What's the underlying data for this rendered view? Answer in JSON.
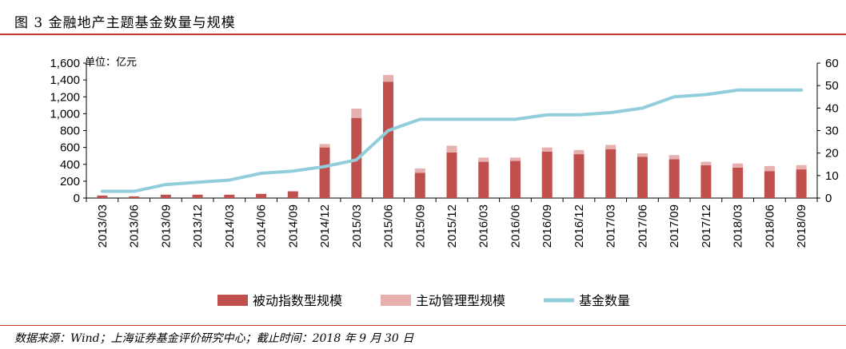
{
  "header": {
    "title": "图 3  金融地产主题基金数量与规模"
  },
  "footer": {
    "source": "数据来源：Wind；上海证券基金评价研究中心；截止时间：2018 年 9 月 30 日"
  },
  "colors": {
    "rule": "#c0392b",
    "passive": "#c0504d",
    "active": "#e6b0ae",
    "count": "#92cddc"
  },
  "chart_data": {
    "type": "bar",
    "unit_label": "单位：亿元",
    "categories": [
      "2013/03",
      "2013/06",
      "2013/09",
      "2013/12",
      "2014/03",
      "2014/06",
      "2014/09",
      "2014/12",
      "2015/03",
      "2015/06",
      "2015/09",
      "2015/12",
      "2016/03",
      "2016/06",
      "2016/09",
      "2016/12",
      "2017/03",
      "2017/06",
      "2017/09",
      "2017/12",
      "2018/03",
      "2018/06",
      "2018/09"
    ],
    "series": [
      {
        "name": "被动指数型规模",
        "kind": "bar-stacked",
        "axis": "left",
        "values": [
          30,
          20,
          40,
          40,
          40,
          50,
          80,
          600,
          950,
          1380,
          300,
          540,
          430,
          440,
          550,
          520,
          580,
          490,
          460,
          390,
          360,
          320,
          340
        ]
      },
      {
        "name": "主动管理型规模",
        "kind": "bar-stacked",
        "axis": "left",
        "values": [
          0,
          0,
          0,
          0,
          0,
          0,
          0,
          40,
          110,
          80,
          50,
          80,
          50,
          40,
          50,
          50,
          50,
          40,
          50,
          40,
          50,
          60,
          50
        ]
      },
      {
        "name": "基金数量",
        "kind": "line",
        "axis": "right",
        "values": [
          3,
          3,
          6,
          7,
          8,
          11,
          12,
          14,
          17,
          30,
          35,
          35,
          35,
          35,
          37,
          37,
          38,
          40,
          45,
          46,
          48,
          48,
          48
        ]
      }
    ],
    "ylim_left": [
      0,
      1600
    ],
    "yticks_left": [
      "0",
      "200",
      "400",
      "600",
      "800",
      "1,000",
      "1,200",
      "1,400",
      "1,600"
    ],
    "ylim_right": [
      0,
      60
    ],
    "yticks_right": [
      "0",
      "10",
      "20",
      "30",
      "40",
      "50",
      "60"
    ],
    "legend_position": "bottom"
  }
}
